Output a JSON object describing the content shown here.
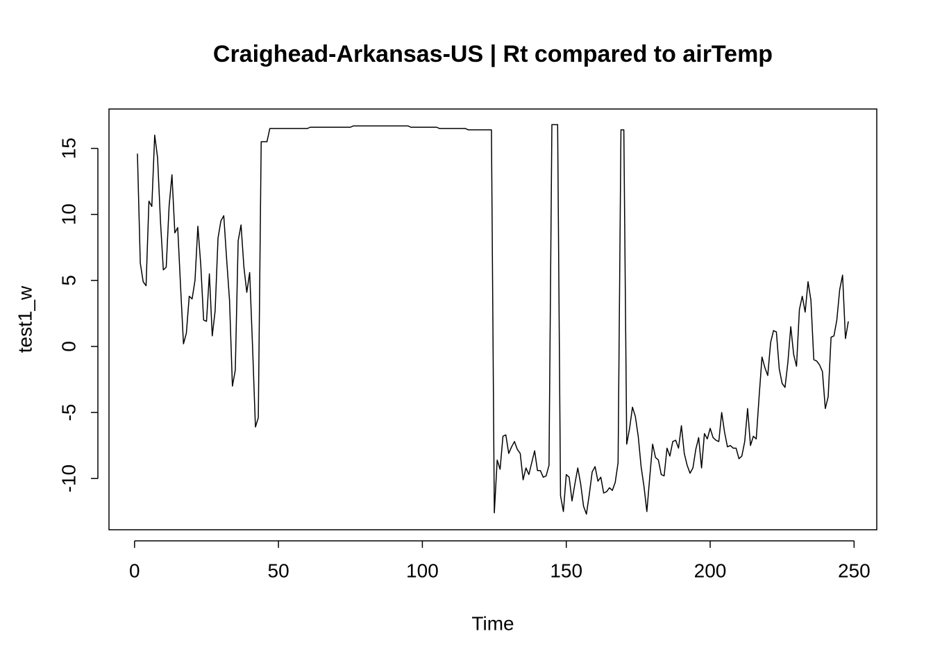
{
  "chart_data": {
    "type": "line",
    "title": "Craighead-Arkansas-US | Rt compared to airTemp",
    "x_label": "Time",
    "y_label": "test1_w",
    "x": [
      1,
      2,
      3,
      4,
      5,
      6,
      7,
      8,
      9,
      10,
      11,
      12,
      13,
      14,
      15,
      16,
      17,
      18,
      19,
      20,
      21,
      22,
      23,
      24,
      25,
      26,
      27,
      28,
      29,
      30,
      31,
      32,
      33,
      34,
      35,
      36,
      37,
      38,
      39,
      40,
      41,
      42,
      43,
      44,
      45,
      46,
      47,
      48,
      49,
      50,
      51,
      52,
      53,
      54,
      55,
      56,
      57,
      58,
      59,
      60,
      61,
      62,
      63,
      64,
      65,
      66,
      67,
      68,
      69,
      70,
      71,
      72,
      73,
      74,
      75,
      76,
      77,
      78,
      79,
      80,
      81,
      82,
      83,
      84,
      85,
      86,
      87,
      88,
      89,
      90,
      91,
      92,
      93,
      94,
      95,
      96,
      97,
      98,
      99,
      100,
      101,
      102,
      103,
      104,
      105,
      106,
      107,
      108,
      109,
      110,
      111,
      112,
      113,
      114,
      115,
      116,
      117,
      118,
      119,
      120,
      121,
      122,
      123,
      124,
      125,
      126,
      127,
      128,
      129,
      130,
      131,
      132,
      133,
      134,
      135,
      136,
      137,
      138,
      139,
      140,
      141,
      142,
      143,
      144,
      145,
      146,
      147,
      148,
      149,
      150,
      151,
      152,
      153,
      154,
      155,
      156,
      157,
      158,
      159,
      160,
      161,
      162,
      163,
      164,
      165,
      166,
      167,
      168,
      169,
      170,
      171,
      172,
      173,
      174,
      175,
      176,
      177,
      178,
      179,
      180,
      181,
      182,
      183,
      184,
      185,
      186,
      187,
      188,
      189,
      190,
      191,
      192,
      193,
      194,
      195,
      196,
      197,
      198,
      199,
      200,
      201,
      202,
      203,
      204,
      205,
      206,
      207,
      208,
      209,
      210,
      211,
      212,
      213,
      214,
      215,
      216,
      217,
      218,
      219,
      220,
      221,
      222,
      223,
      224,
      225,
      226,
      227,
      228,
      229,
      230,
      231,
      232,
      233,
      234,
      235,
      236,
      237,
      238,
      239,
      240,
      241,
      242,
      243,
      244,
      245,
      246,
      247,
      248
    ],
    "series": [
      {
        "name": "test1_w",
        "color": "#000000",
        "values": [
          14.6,
          6.3,
          4.9,
          4.6,
          11.0,
          10.6,
          16.0,
          14.3,
          9.5,
          5.8,
          6.0,
          10.6,
          13.0,
          8.6,
          9.0,
          4.5,
          0.2,
          1.0,
          3.8,
          3.6,
          5.0,
          9.1,
          6.2,
          2.0,
          1.9,
          5.5,
          0.8,
          2.7,
          8.2,
          9.5,
          9.9,
          6.6,
          3.5,
          -3.0,
          -1.8,
          8.0,
          9.2,
          6.0,
          4.1,
          5.6,
          0.0,
          -6.1,
          -5.4,
          15.5,
          15.5,
          15.5,
          16.5,
          16.5,
          16.5,
          16.5,
          16.5,
          16.5,
          16.5,
          16.5,
          16.5,
          16.5,
          16.5,
          16.5,
          16.5,
          16.5,
          16.6,
          16.6,
          16.6,
          16.6,
          16.6,
          16.6,
          16.6,
          16.6,
          16.6,
          16.6,
          16.6,
          16.6,
          16.6,
          16.6,
          16.6,
          16.7,
          16.7,
          16.7,
          16.7,
          16.7,
          16.7,
          16.7,
          16.7,
          16.7,
          16.7,
          16.7,
          16.7,
          16.7,
          16.7,
          16.7,
          16.7,
          16.7,
          16.7,
          16.7,
          16.7,
          16.6,
          16.6,
          16.6,
          16.6,
          16.6,
          16.6,
          16.6,
          16.6,
          16.6,
          16.6,
          16.5,
          16.5,
          16.5,
          16.5,
          16.5,
          16.5,
          16.5,
          16.5,
          16.5,
          16.5,
          16.4,
          16.4,
          16.4,
          16.4,
          16.4,
          16.4,
          16.4,
          16.4,
          16.4,
          -12.6,
          -8.6,
          -9.3,
          -6.8,
          -6.7,
          -8.1,
          -7.6,
          -7.2,
          -7.8,
          -8.1,
          -10.1,
          -9.2,
          -9.7,
          -8.8,
          -7.9,
          -9.4,
          -9.4,
          -9.9,
          -9.8,
          -9.0,
          16.8,
          16.8,
          16.8,
          -11.3,
          -12.5,
          -9.7,
          -9.9,
          -11.7,
          -10.4,
          -9.2,
          -10.4,
          -12.1,
          -12.7,
          -11.2,
          -9.5,
          -9.1,
          -10.2,
          -9.9,
          -11.1,
          -11.0,
          -10.7,
          -10.9,
          -10.3,
          -8.8,
          16.4,
          16.4,
          -7.4,
          -6.2,
          -4.6,
          -5.3,
          -6.8,
          -9.1,
          -10.6,
          -12.5,
          -9.9,
          -7.4,
          -8.4,
          -8.6,
          -9.7,
          -9.8,
          -7.7,
          -8.3,
          -7.2,
          -7.1,
          -7.7,
          -6.0,
          -8.1,
          -9.0,
          -9.6,
          -9.2,
          -7.8,
          -6.9,
          -9.2,
          -6.6,
          -7.0,
          -6.2,
          -6.9,
          -7.1,
          -7.2,
          -5.0,
          -6.5,
          -7.6,
          -7.5,
          -7.7,
          -7.7,
          -8.5,
          -8.3,
          -7.2,
          -4.7,
          -7.5,
          -6.8,
          -7.0,
          -3.8,
          -0.8,
          -1.6,
          -2.2,
          0.3,
          1.2,
          1.1,
          -1.7,
          -2.8,
          -3.1,
          -1.2,
          1.5,
          -0.6,
          -1.5,
          2.8,
          3.8,
          2.6,
          4.9,
          3.5,
          -1.0,
          -1.1,
          -1.4,
          -1.9,
          -4.7,
          -3.8,
          0.7,
          0.8,
          2.0,
          4.3,
          5.4,
          0.6,
          1.9
        ]
      }
    ],
    "xlim": [
      -8.88,
      257.88
    ],
    "ylim": [
      -13.88,
      17.98
    ],
    "xticks": [
      0,
      50,
      100,
      150,
      200,
      250
    ],
    "yticks": [
      -10,
      -5,
      0,
      5,
      10,
      15
    ]
  }
}
